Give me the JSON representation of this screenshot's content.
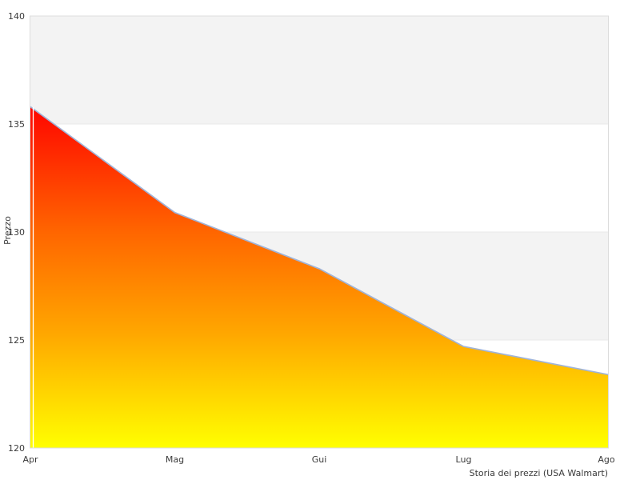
{
  "chart_data": {
    "type": "area",
    "categories": [
      "Apr",
      "Mag",
      "Gui",
      "Lug",
      "Ago"
    ],
    "values": [
      135.8,
      130.9,
      128.3,
      124.7,
      123.4
    ],
    "title": "",
    "xlabel": "",
    "ylabel": "Prezzo",
    "caption": "Storia dei prezzi (USA Walmart)",
    "ylim": [
      120,
      140
    ],
    "yticks": [
      120,
      125,
      130,
      135,
      140
    ],
    "yticklabels": [
      "120",
      "125",
      "130",
      "135",
      "140"
    ],
    "legend_visible": false,
    "grid": "alternating-horizontal-bands",
    "colors": {
      "band_gray": "#f3f3f3",
      "plot_border": "#dcdcdc",
      "gridline": "#e9e9e9",
      "line_stroke": "#a0b4d8",
      "fill_top": "#ff0500",
      "fill_mid1": "#ff6600",
      "fill_mid2": "#ffa800",
      "fill_bottom": "#ffff00",
      "text": "#3a3a3a"
    }
  }
}
